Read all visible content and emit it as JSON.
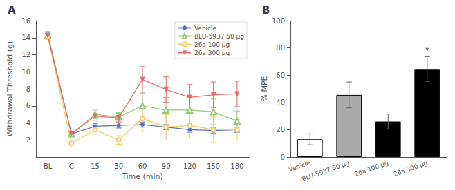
{
  "chart_data": [
    {
      "type": "line",
      "title": "A",
      "xlabel": "Time (min)",
      "ylabel": "Withdrawal Threshold (g)",
      "categories": [
        "BL",
        "C",
        "15",
        "30",
        "60",
        "90",
        "120",
        "150",
        "180"
      ],
      "series": [
        {
          "name": "Vehicle",
          "marker": "circle",
          "values": [
            14.4,
            2.7,
            3.6,
            3.7,
            3.8,
            3.5,
            3.2,
            3.1,
            3.2
          ],
          "errors": [
            0.3,
            0.2,
            0.3,
            0.3,
            0.3,
            0.3,
            0.3,
            0.3,
            0.3
          ]
        },
        {
          "name": "BLU-5937 50 μg",
          "marker": "open triangle",
          "values": [
            14.3,
            2.7,
            5.0,
            4.7,
            6.0,
            5.5,
            5.5,
            5.3,
            4.2
          ],
          "errors": [
            0.3,
            0.2,
            0.5,
            0.5,
            1.5,
            1.5,
            1.5,
            1.5,
            1.2
          ]
        },
        {
          "name": "26a 100 μg",
          "marker": "open circle",
          "values": [
            14.1,
            1.6,
            3.2,
            2.0,
            4.5,
            3.5,
            3.7,
            3.2,
            3.2
          ],
          "errors": [
            0.3,
            0.2,
            0.5,
            0.5,
            1.5,
            1.5,
            1.5,
            1.5,
            1.2
          ]
        },
        {
          "name": "26a 300 μg",
          "marker": "down triangle",
          "values": [
            14.2,
            2.7,
            4.8,
            4.6,
            9.1,
            7.9,
            7.0,
            7.3,
            7.4
          ],
          "errors": [
            0.3,
            0.2,
            0.5,
            0.5,
            1.5,
            1.5,
            1.5,
            1.5,
            1.5
          ]
        }
      ],
      "ylim": [
        0,
        16
      ],
      "yticks": [
        2,
        4,
        6,
        8,
        10,
        12,
        14,
        16
      ],
      "grid": false,
      "legend": "upper right"
    },
    {
      "type": "bar",
      "title": "B",
      "ylabel": "% MPE",
      "categories": [
        "Vehicle",
        "BLU-5937 50 μg",
        "26a 100 μg",
        "26a 300 μg"
      ],
      "values": [
        13.0,
        45.5,
        26.0,
        64.5
      ],
      "errors": [
        4.0,
        9.5,
        5.5,
        9.0
      ],
      "colors": [
        "#ffffff",
        "#aaaaaa",
        "#000000",
        "#000000"
      ],
      "ylim": [
        0,
        100
      ],
      "yticks": [
        0,
        20,
        40,
        60,
        80,
        100
      ],
      "grid": false,
      "annotations": [
        {
          "text": "*",
          "category": "26a 300 μg"
        }
      ]
    }
  ]
}
